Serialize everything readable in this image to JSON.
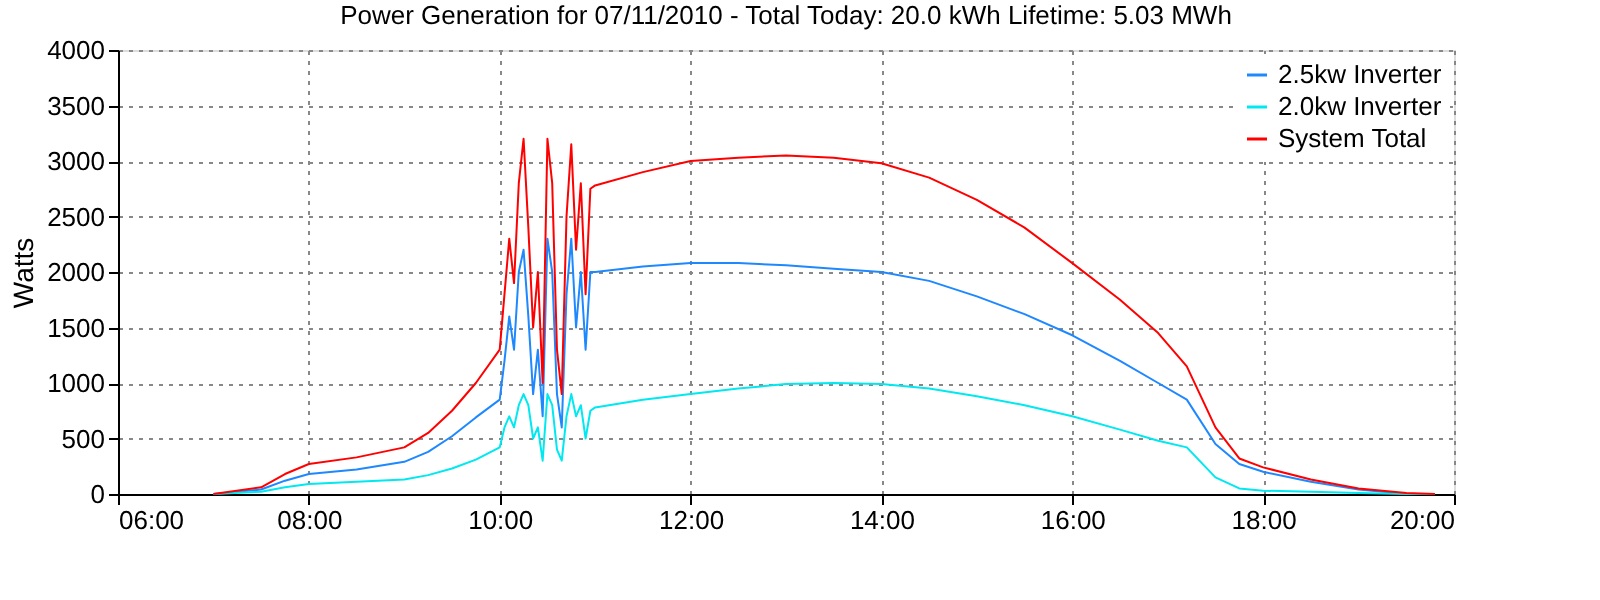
{
  "chart_data": {
    "type": "line",
    "title": "Power Generation for 07/11/2010 - Total Today: 20.0 kWh   Lifetime: 5.03 MWh",
    "ylabel": "Watts",
    "x": [
      7.0,
      7.5,
      7.75,
      8.0,
      8.5,
      9.0,
      9.25,
      9.5,
      9.75,
      10.0,
      10.05,
      10.1,
      10.15,
      10.2,
      10.25,
      10.3,
      10.35,
      10.4,
      10.45,
      10.5,
      10.55,
      10.6,
      10.65,
      10.7,
      10.75,
      10.8,
      10.85,
      10.9,
      10.95,
      11.0,
      11.5,
      12.0,
      12.5,
      13.0,
      13.5,
      14.0,
      14.5,
      15.0,
      15.5,
      16.0,
      16.5,
      16.9,
      17.2,
      17.5,
      17.75,
      18.0,
      18.5,
      19.0,
      19.5,
      19.8
    ],
    "series": [
      {
        "name": "2.5kw Inverter",
        "color": "#1e88ff",
        "values": [
          0,
          40,
          120,
          180,
          220,
          290,
          380,
          520,
          690,
          850,
          1200,
          1600,
          1300,
          2000,
          2200,
          1600,
          900,
          1300,
          700,
          2300,
          2000,
          900,
          600,
          1800,
          2300,
          1500,
          2000,
          1300,
          2000,
          2000,
          2050,
          2080,
          2080,
          2060,
          2030,
          2000,
          1920,
          1780,
          1620,
          1430,
          1200,
          1000,
          850,
          450,
          270,
          200,
          110,
          40,
          0,
          0
        ]
      },
      {
        "name": "2.0kw Inverter",
        "color": "#00e8f0",
        "values": [
          0,
          20,
          60,
          90,
          110,
          130,
          170,
          230,
          310,
          420,
          600,
          700,
          600,
          800,
          900,
          800,
          500,
          600,
          300,
          900,
          800,
          400,
          300,
          700,
          900,
          700,
          800,
          500,
          750,
          780,
          850,
          900,
          950,
          990,
          1000,
          990,
          950,
          880,
          800,
          700,
          580,
          480,
          420,
          150,
          50,
          30,
          20,
          10,
          0,
          0
        ]
      },
      {
        "name": "System Total",
        "color": "#ff0000",
        "values": [
          0,
          60,
          180,
          270,
          330,
          420,
          550,
          750,
          1000,
          1300,
          1800,
          2300,
          1900,
          2800,
          3200,
          2400,
          1500,
          2000,
          1000,
          3200,
          2800,
          1300,
          900,
          2500,
          3150,
          2200,
          2800,
          1800,
          2750,
          2780,
          2900,
          3000,
          3030,
          3050,
          3030,
          2980,
          2850,
          2650,
          2400,
          2080,
          1750,
          1450,
          1150,
          600,
          320,
          240,
          130,
          50,
          10,
          0
        ]
      }
    ],
    "xlim": [
      6,
      20
    ],
    "xticks": [
      {
        "value": 6,
        "label": "06:00"
      },
      {
        "value": 8,
        "label": "08:00"
      },
      {
        "value": 10,
        "label": "10:00"
      },
      {
        "value": 12,
        "label": "12:00"
      },
      {
        "value": 14,
        "label": "14:00"
      },
      {
        "value": 16,
        "label": "16:00"
      },
      {
        "value": 18,
        "label": "18:00"
      },
      {
        "value": 20,
        "label": "20:00"
      }
    ],
    "ylim": [
      0,
      4000
    ],
    "yticks": [
      0,
      500,
      1000,
      1500,
      2000,
      2500,
      3000,
      3500,
      4000
    ],
    "grid": true,
    "legend": "top right",
    "marker": "none",
    "line_style": "solid"
  }
}
